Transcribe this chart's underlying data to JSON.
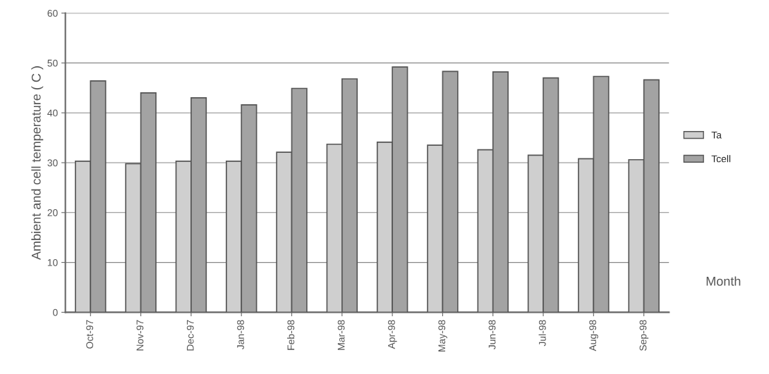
{
  "chart_data": {
    "type": "bar",
    "xlabel": "Month",
    "ylabel": "Ambient and cell temperature ( C )",
    "categories": [
      "Oct-97",
      "Nov-97",
      "Dec-97",
      "Jan-98",
      "Feb-98",
      "Mar-98",
      "Apr-98",
      "May-98",
      "Jun-98",
      "Jul-98",
      "Aug-98",
      "Sep-98"
    ],
    "series": [
      {
        "name": "Ta",
        "color": "#cfcfcf",
        "values": [
          30.3,
          29.8,
          30.3,
          30.3,
          32.1,
          33.7,
          34.1,
          33.5,
          32.6,
          31.5,
          30.8,
          30.6
        ]
      },
      {
        "name": "Tcell",
        "color": "#a3a3a3",
        "values": [
          46.4,
          44.0,
          43.0,
          41.6,
          44.9,
          46.8,
          49.2,
          48.3,
          48.2,
          47.0,
          47.3,
          46.6
        ]
      }
    ],
    "ylim": [
      0,
      60
    ],
    "yticks": [
      0,
      10,
      20,
      30,
      40,
      50,
      60
    ],
    "grid": "y",
    "legend": "right"
  }
}
